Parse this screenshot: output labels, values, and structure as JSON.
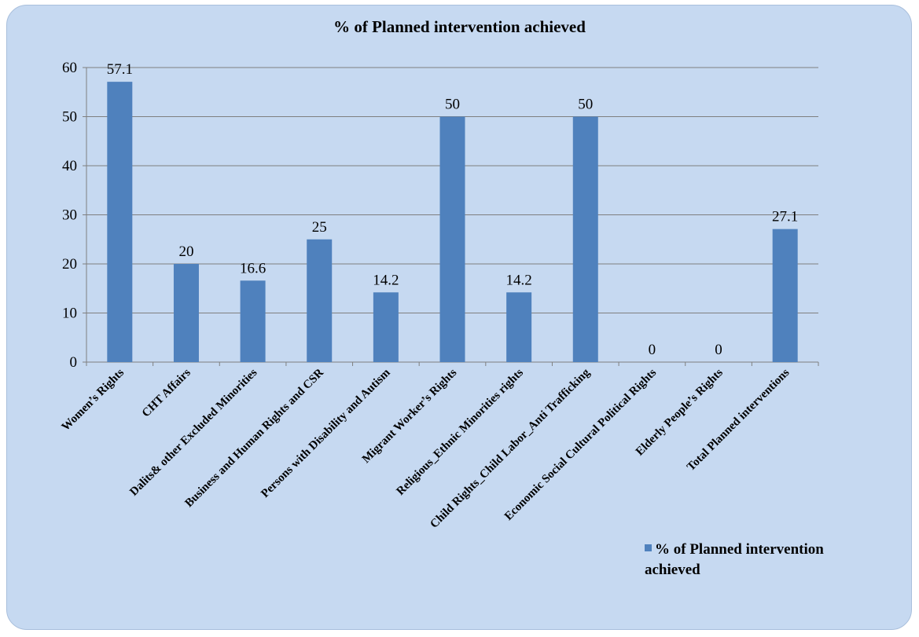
{
  "chart_data": {
    "type": "bar",
    "title": "% of Planned intervention achieved",
    "categories": [
      "Women’s Rights",
      "CHT Affairs",
      "Dalits& other Excluded Minorities",
      "Business and Human Rights and CSR",
      "Persons with Disability and Autism",
      "Migrant Worker’s Rights",
      "Religious_Ethnic Minorities rights",
      "Child Rights_Child Labor_Anti Trafficking",
      "Economic Social Cultural Political Rights",
      "Elderly People’s Rights",
      "Total Planned interventions"
    ],
    "series": [
      {
        "name": "% of Planned intervention achieved",
        "values": [
          57.1,
          20,
          16.6,
          25,
          14.2,
          50,
          14.2,
          50,
          0,
          0,
          27.1
        ],
        "labels": [
          "57.1",
          "20",
          "16.6",
          "25",
          "14.2",
          "50",
          "14.2",
          "50",
          "0",
          "0",
          "27.1"
        ],
        "color": "#4f81bd"
      }
    ],
    "ylim": [
      0,
      60
    ],
    "yticks": [
      0,
      10,
      20,
      30,
      40,
      50,
      60
    ],
    "grid": true,
    "legend": "bottom-right",
    "background": "#c6d9f1"
  }
}
